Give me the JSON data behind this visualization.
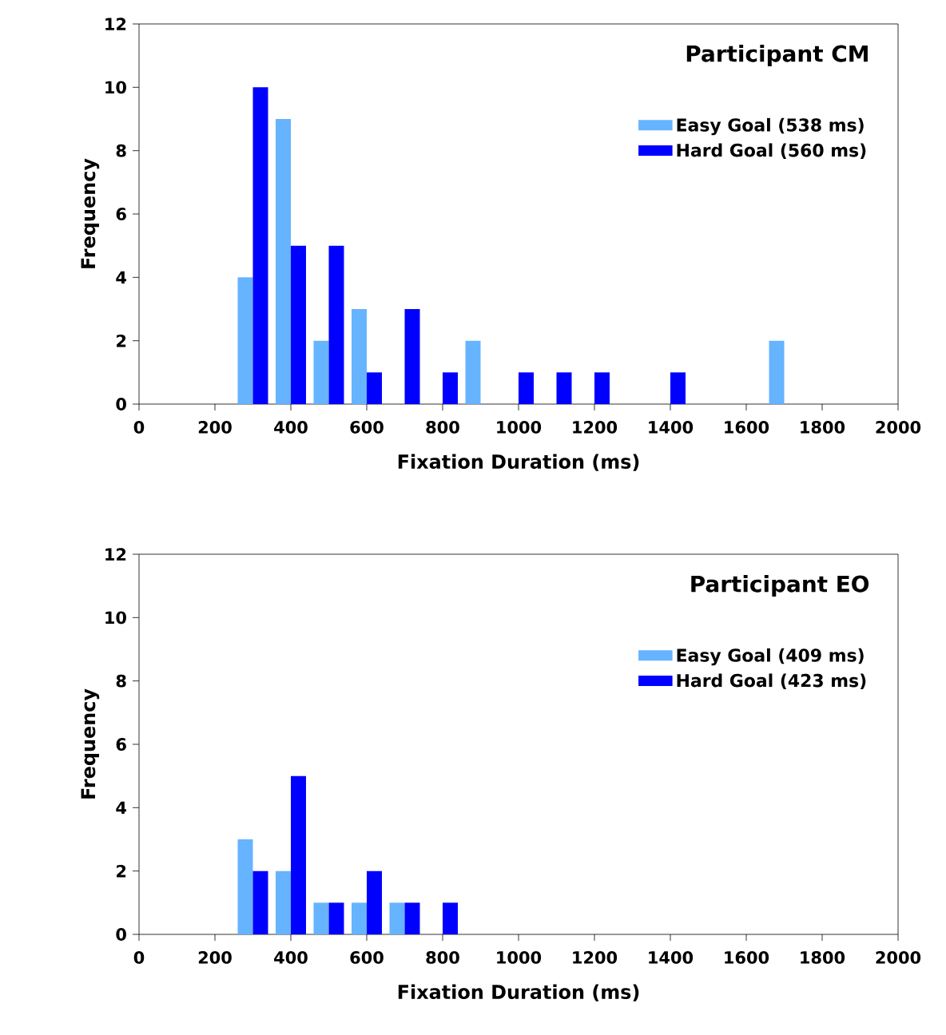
{
  "chart_data": [
    {
      "type": "bar",
      "title": "Participant CM",
      "xlabel": "Fixation Duration (ms)",
      "ylabel": "Frequency",
      "x": [
        300,
        400,
        500,
        600,
        700,
        800,
        900,
        1000,
        1100,
        1200,
        1300,
        1400,
        1500,
        1600,
        1700
      ],
      "series": [
        {
          "name": "Easy Goal (538 ms)",
          "color": "#66b3ff",
          "values": [
            4,
            9,
            2,
            3,
            0,
            0,
            2,
            0,
            0,
            0,
            0,
            0,
            0,
            0,
            2
          ]
        },
        {
          "name": "Hard Goal (560 ms)",
          "color": "#0000ff",
          "values": [
            10,
            5,
            5,
            1,
            3,
            1,
            0,
            1,
            1,
            1,
            0,
            1,
            0,
            0,
            0
          ]
        }
      ],
      "xlim": [
        0,
        2000
      ],
      "xticks": [
        0,
        200,
        400,
        600,
        800,
        1000,
        1200,
        1400,
        1600,
        1800,
        2000
      ],
      "ylim": [
        0,
        12
      ],
      "yticks": [
        0,
        2,
        4,
        6,
        8,
        10,
        12
      ],
      "legend": "top right"
    },
    {
      "type": "bar",
      "title": "Participant EO",
      "xlabel": "Fixation Duration (ms)",
      "ylabel": "Frequency",
      "x": [
        300,
        400,
        500,
        600,
        700,
        800,
        900,
        1000,
        1100,
        1200,
        1300,
        1400,
        1500,
        1600,
        1700
      ],
      "series": [
        {
          "name": "Easy Goal (409 ms)",
          "color": "#66b3ff",
          "values": [
            3,
            2,
            1,
            1,
            1,
            0,
            0,
            0,
            0,
            0,
            0,
            0,
            0,
            0,
            0
          ]
        },
        {
          "name": "Hard Goal (423 ms)",
          "color": "#0000ff",
          "values": [
            2,
            5,
            1,
            2,
            1,
            1,
            0,
            0,
            0,
            0,
            0,
            0,
            0,
            0,
            0
          ]
        }
      ],
      "xlim": [
        0,
        2000
      ],
      "xticks": [
        0,
        200,
        400,
        600,
        800,
        1000,
        1200,
        1400,
        1600,
        1800,
        2000
      ],
      "ylim": [
        0,
        12
      ],
      "yticks": [
        0,
        2,
        4,
        6,
        8,
        10,
        12
      ],
      "legend": "top right"
    }
  ]
}
